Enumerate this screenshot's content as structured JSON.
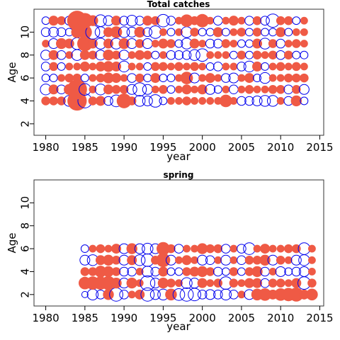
{
  "chart_data": [
    {
      "type": "scatter",
      "title": "Total catches",
      "xlabel": "year",
      "ylabel": "Age",
      "xlim": [
        1978.5,
        2015.5
      ],
      "ylim": [
        1,
        12
      ],
      "xticks": [
        1980,
        1985,
        1990,
        1995,
        2000,
        2005,
        2010,
        2015
      ],
      "yticks": [
        2,
        4,
        6,
        8,
        10
      ],
      "marker_colors": {
        "positive": "#ef5a45",
        "negative": "#0000ee"
      },
      "note": "bubble residual plot; positive values filled red, negative values open blue; magnitude = bubble size",
      "x": [
        1980,
        1981,
        1982,
        1983,
        1984,
        1985,
        1986,
        1987,
        1988,
        1989,
        1990,
        1991,
        1992,
        1993,
        1994,
        1995,
        1996,
        1997,
        1998,
        1999,
        2000,
        2001,
        2002,
        2003,
        2004,
        2005,
        2006,
        2007,
        2008,
        2009,
        2010,
        2011,
        2012,
        2013
      ],
      "ages": [
        4,
        5,
        6,
        7,
        8,
        9,
        10,
        11
      ],
      "residuals": {
        "11": [
          -0.3,
          0.5,
          0.4,
          -0.4,
          2.0,
          1.2,
          0.6,
          -0.7,
          -0.5,
          0.5,
          -0.4,
          -0.6,
          -0.4,
          0.5,
          0.4,
          -0.8,
          -0.4,
          0.3,
          0.8,
          0.4,
          0.9,
          0.3,
          -0.4,
          0.3,
          0.5,
          0.3,
          -0.4,
          0.4,
          -0.4,
          -0.9,
          0.4,
          0.4,
          -0.3,
          0.3
        ],
        "10": [
          -0.4,
          -0.5,
          -0.4,
          -0.3,
          0.7,
          1.0,
          -1.0,
          -0.6,
          0.5,
          0.7,
          -0.6,
          -0.5,
          0.6,
          -0.4,
          -0.8,
          0.3,
          -0.3,
          0.3,
          -0.6,
          0.4,
          -0.3,
          -0.3,
          0.5,
          -0.3,
          0.3,
          0.4,
          -0.3,
          0.4,
          -0.3,
          -0.3,
          0.5,
          -0.3,
          0.3,
          0.3
        ],
        "9": [
          0.3,
          -0.5,
          0.6,
          0.5,
          -0.7,
          1.2,
          0.5,
          -0.6,
          0.5,
          -0.6,
          0.6,
          -0.5,
          0.4,
          -0.5,
          0.3,
          0.5,
          0.4,
          -0.3,
          -0.6,
          0.5,
          0.3,
          -0.4,
          -0.4,
          0.4,
          0.3,
          -0.3,
          -0.3,
          0.5,
          -0.6,
          0.4,
          -0.4,
          0.3,
          0.4,
          0.3
        ],
        "8": [
          -0.5,
          0.5,
          -0.4,
          0.3,
          -0.6,
          0.5,
          0.4,
          -0.5,
          0.6,
          0.4,
          -0.5,
          0.3,
          0.5,
          0.4,
          -0.3,
          0.3,
          -0.4,
          -0.4,
          -0.4,
          -0.6,
          -0.8,
          0.3,
          0.3,
          0.3,
          -0.3,
          0.4,
          -0.3,
          0.4,
          0.3,
          0.4,
          -0.4,
          0.4,
          -0.3,
          -0.3
        ],
        "7": [
          -0.4,
          0.4,
          -0.3,
          0.3,
          0.3,
          0.5,
          0.3,
          0.5,
          0.6,
          0.5,
          -0.6,
          0.3,
          0.3,
          -0.3,
          0.4,
          0.4,
          0.3,
          0.4,
          0.3,
          0.4,
          0.3,
          -0.3,
          -0.4,
          0.3,
          0.3,
          -0.4,
          -0.6,
          0.5,
          -0.3,
          0.3,
          0.4,
          0.3,
          0.4,
          0.3
        ],
        "6": [
          -0.3,
          -0.3,
          0.3,
          0.4,
          0.4,
          -0.3,
          0.3,
          0.4,
          0.6,
          0.5,
          0.3,
          -0.4,
          0.4,
          -0.3,
          0.5,
          -0.3,
          -0.3,
          0.3,
          0.8,
          -0.5,
          0.3,
          0.5,
          0.3,
          -0.4,
          -0.5,
          0.3,
          0.5,
          -0.3,
          -0.6,
          0.3,
          0.3,
          0.4,
          0.4,
          0.4
        ],
        "5": [
          -0.6,
          0.5,
          -0.4,
          0.6,
          2.0,
          -0.7,
          0.3,
          -0.6,
          0.5,
          0.4,
          0.4,
          -0.5,
          -0.9,
          -0.5,
          0.3,
          0.4,
          -0.3,
          0.3,
          0.5,
          0.3,
          0.5,
          -0.5,
          -0.3,
          0.3,
          -0.4,
          0.3,
          0.4,
          0.3,
          0.3,
          0.4,
          0.4,
          -0.4,
          0.4,
          -0.5
        ],
        "4": [
          0.4,
          0.4,
          0.4,
          -0.6,
          1.9,
          -1.0,
          0.4,
          0.5,
          -0.4,
          -0.7,
          1.1,
          0.4,
          -0.6,
          -0.5,
          -0.8,
          -0.3,
          0.3,
          0.3,
          0.4,
          0.3,
          0.3,
          0.3,
          0.3,
          0.8,
          0.3,
          -0.4,
          -0.4,
          -0.5,
          -0.6,
          -0.6,
          0.3,
          -0.4,
          0.6,
          -0.3
        ]
      }
    },
    {
      "type": "scatter",
      "title": "spring",
      "xlabel": "year",
      "ylabel": "Age",
      "xlim": [
        1978.5,
        2015.5
      ],
      "ylim": [
        1,
        12
      ],
      "xticks": [
        1980,
        1985,
        1990,
        1995,
        2000,
        2005,
        2010,
        2015
      ],
      "yticks": [
        2,
        4,
        6,
        8,
        10
      ],
      "marker_colors": {
        "positive": "#ef5a45",
        "negative": "#0000ee"
      },
      "note": "bubble residual plot; positive values filled red, negative values open blue; magnitude = bubble size",
      "x": [
        1985,
        1986,
        1987,
        1988,
        1989,
        1990,
        1991,
        1992,
        1993,
        1994,
        1995,
        1996,
        1997,
        1998,
        1999,
        2000,
        2001,
        2002,
        2003,
        2004,
        2005,
        2006,
        2007,
        2008,
        2009,
        2010,
        2011,
        2012,
        2013,
        2014
      ],
      "ages": [
        2,
        3,
        4,
        5,
        6
      ],
      "residuals": {
        "6": [
          -0.3,
          0.3,
          0.4,
          0.3,
          0.5,
          -0.5,
          0.6,
          -0.5,
          -0.6,
          -0.5,
          0.9,
          0.4,
          -0.4,
          0.3,
          0.3,
          0.6,
          0.4,
          0.4,
          -0.4,
          0.3,
          -0.4,
          -0.7,
          0.3,
          0.5,
          0.3,
          0.3,
          0.4,
          0.4,
          -0.7,
          0.3
        ],
        "5": [
          -0.5,
          -0.6,
          0.5,
          0.6,
          0.4,
          -0.5,
          0.5,
          -0.6,
          -0.8,
          0.4,
          1.0,
          -0.5,
          0.3,
          0.5,
          0.3,
          -0.5,
          -0.4,
          0.3,
          -0.5,
          0.3,
          -0.4,
          0.4,
          0.4,
          0.6,
          -0.5,
          0.4,
          0.3,
          -0.5,
          -0.6,
          0.3
        ],
        "4": [
          0.4,
          0.4,
          0.7,
          0.6,
          0.4,
          -0.4,
          -0.4,
          0.3,
          -0.6,
          -0.4,
          0.5,
          -0.3,
          -0.3,
          0.4,
          0.5,
          0.6,
          0.4,
          -0.4,
          -0.3,
          0.4,
          -0.3,
          0.4,
          0.6,
          -0.4,
          0.3,
          -0.5,
          -0.3,
          -0.4,
          -0.5,
          0.3
        ],
        "3": [
          0.8,
          0.9,
          0.9,
          1.0,
          0.6,
          -0.5,
          0.6,
          0.3,
          -1.1,
          -0.5,
          0.6,
          0.4,
          0.3,
          -0.6,
          -0.5,
          0.5,
          0.3,
          0.4,
          -0.8,
          0.4,
          0.3,
          0.5,
          0.5,
          -0.4,
          0.4,
          0.4,
          0.3,
          0.5,
          -0.8,
          0.4
        ],
        "2": [
          -0.2,
          -0.6,
          -0.4,
          0.6,
          -0.9,
          -0.4,
          0.3,
          0.5,
          -0.9,
          -0.5,
          -0.6,
          0.7,
          -0.7,
          -0.9,
          -0.8,
          -0.4,
          -0.5,
          -0.4,
          -0.6,
          -0.4,
          0.3,
          -0.5,
          0.7,
          0.8,
          0.5,
          0.8,
          0.9,
          1.0,
          0.5,
          0.7
        ]
      }
    }
  ]
}
